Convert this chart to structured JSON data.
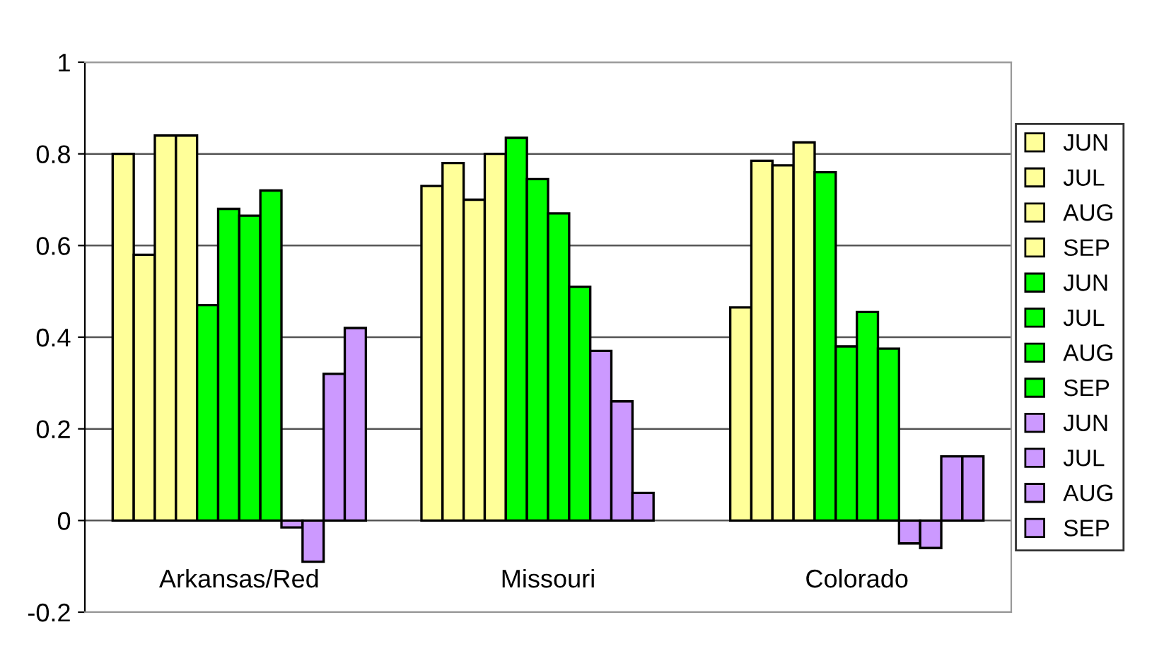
{
  "chart_data": {
    "type": "bar",
    "categories": [
      "Arkansas/Red",
      "Missouri",
      "Colorado"
    ],
    "series": [
      {
        "name": "JUN",
        "color": "#ffff99",
        "values": [
          0.8,
          0.73,
          0.465
        ]
      },
      {
        "name": "JUL",
        "color": "#ffff99",
        "values": [
          0.58,
          0.78,
          0.785
        ]
      },
      {
        "name": "AUG",
        "color": "#ffff99",
        "values": [
          0.84,
          0.7,
          0.775
        ]
      },
      {
        "name": "SEP",
        "color": "#ffff99",
        "values": [
          0.84,
          0.8,
          0.825
        ]
      },
      {
        "name": "JUN",
        "color": "#00ff00",
        "values": [
          0.47,
          0.835,
          0.76
        ]
      },
      {
        "name": "JUL",
        "color": "#00ff00",
        "values": [
          0.68,
          0.745,
          0.38
        ]
      },
      {
        "name": "AUG",
        "color": "#00ff00",
        "values": [
          0.665,
          0.67,
          0.455
        ]
      },
      {
        "name": "SEP",
        "color": "#00ff00",
        "values": [
          0.72,
          0.51,
          0.375
        ]
      },
      {
        "name": "JUN",
        "color": "#cc99ff",
        "values": [
          -0.015,
          0.37,
          -0.05
        ]
      },
      {
        "name": "JUL",
        "color": "#cc99ff",
        "values": [
          -0.09,
          0.26,
          -0.06
        ]
      },
      {
        "name": "AUG",
        "color": "#cc99ff",
        "values": [
          0.32,
          0.06,
          0.14
        ]
      },
      {
        "name": "SEP",
        "color": "#cc99ff",
        "values": [
          0.42,
          null,
          0.14
        ]
      }
    ],
    "ylim": [
      -0.2,
      1
    ],
    "yticks": [
      -0.2,
      0,
      0.2,
      0.4,
      0.6,
      0.8,
      1
    ],
    "grid": "y",
    "legend": "right"
  }
}
